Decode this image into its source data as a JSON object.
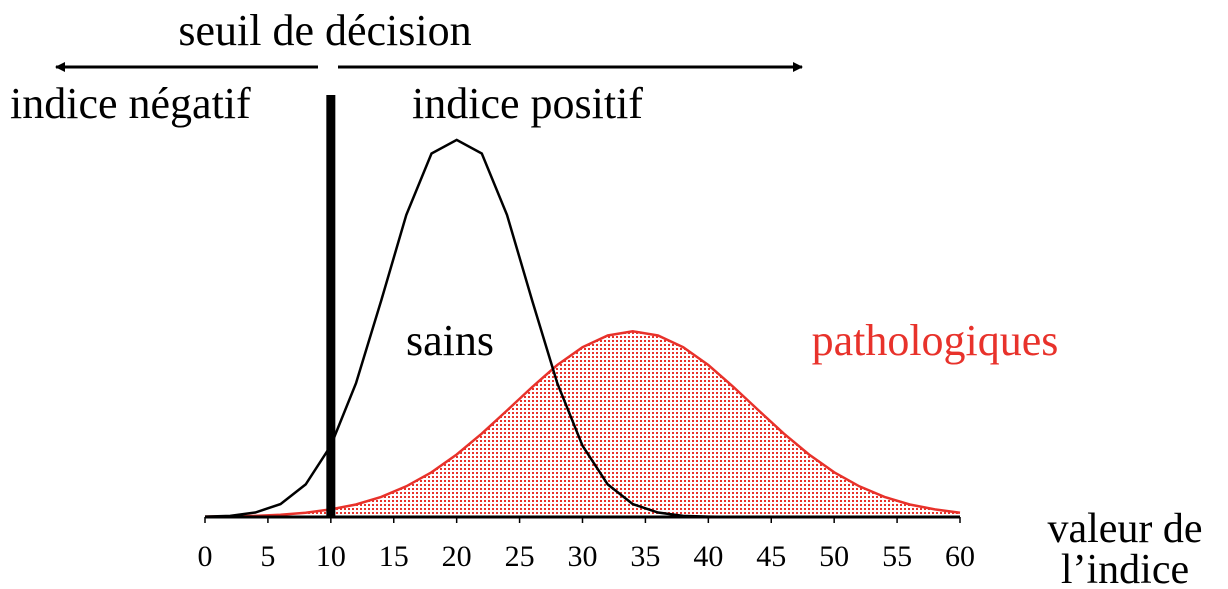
{
  "chart_data": {
    "type": "line",
    "title": "seuil de décision",
    "left_label": "indice négatif",
    "right_label": "indice positif",
    "threshold": 10,
    "xlabel": [
      "valeur de",
      "l’indice"
    ],
    "x": [
      0,
      2,
      4,
      6,
      8,
      10,
      12,
      14,
      16,
      18,
      20,
      22,
      24,
      26,
      28,
      30,
      32,
      34,
      36,
      38,
      40,
      42,
      44,
      46,
      48,
      50,
      52,
      54,
      56,
      58,
      60
    ],
    "series": [
      {
        "name": "sains",
        "color": "#000000",
        "fill": false,
        "values": [
          0.1,
          0.3,
          1.2,
          3.4,
          8.6,
          18.8,
          35.3,
          57.1,
          79.7,
          95.9,
          99.5,
          95.9,
          79.7,
          57.1,
          35.3,
          18.8,
          8.6,
          3.4,
          1.2,
          0.3,
          0.1,
          0,
          0,
          0,
          0,
          0,
          0,
          0,
          0,
          0,
          0
        ]
      },
      {
        "name": "pathologiques",
        "color": "#e8322b",
        "fill": true,
        "values": [
          0.1,
          0.2,
          0.3,
          0.6,
          1.1,
          2.0,
          3.3,
          5.3,
          8.1,
          11.8,
          16.5,
          22.0,
          28.1,
          34.3,
          40.1,
          44.8,
          47.9,
          49,
          47.9,
          44.8,
          40.1,
          34.3,
          28.1,
          22.0,
          16.5,
          11.8,
          8.1,
          5.3,
          3.3,
          2.0,
          1.1
        ]
      }
    ],
    "xlim": [
      0,
      60
    ],
    "xticks": [
      0,
      5,
      10,
      15,
      20,
      25,
      30,
      35,
      40,
      45,
      50,
      55,
      60
    ],
    "ylim": [
      0,
      100
    ]
  }
}
